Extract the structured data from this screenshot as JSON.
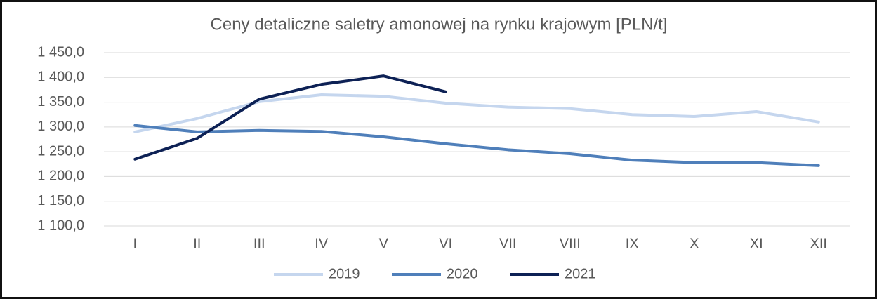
{
  "chart_data": {
    "type": "line",
    "title": "Ceny detaliczne saletry amonowej na rynku krajowym [PLN/t]",
    "categories": [
      "I",
      "II",
      "III",
      "IV",
      "V",
      "VI",
      "VII",
      "VIII",
      "IX",
      "X",
      "XI",
      "XII"
    ],
    "series": [
      {
        "name": "2019",
        "color": "#c5d6ee",
        "values": [
          1290,
          1317,
          1351,
          1365,
          1362,
          1348,
          1340,
          1337,
          1325,
          1321,
          1331,
          1310
        ]
      },
      {
        "name": "2020",
        "color": "#4f7fba",
        "values": [
          1303,
          1290,
          1293,
          1291,
          1280,
          1266,
          1254,
          1246,
          1233,
          1228,
          1228,
          1222
        ]
      },
      {
        "name": "2021",
        "color": "#0d2155",
        "values": [
          1235,
          1277,
          1356,
          1386,
          1403,
          1371,
          null,
          null,
          null,
          null,
          null,
          null
        ]
      }
    ],
    "ylim": [
      1100,
      1450
    ],
    "yticks": [
      {
        "value": 1100,
        "label": "1 100,0"
      },
      {
        "value": 1150,
        "label": "1 150,0"
      },
      {
        "value": 1200,
        "label": "1 200,0"
      },
      {
        "value": 1250,
        "label": "1 250,0"
      },
      {
        "value": 1300,
        "label": "1 300,0"
      },
      {
        "value": 1350,
        "label": "1 350,0"
      },
      {
        "value": 1400,
        "label": "1 400,0"
      },
      {
        "value": 1450,
        "label": "1 450,0"
      }
    ],
    "grid": true,
    "legend": "bottom"
  }
}
